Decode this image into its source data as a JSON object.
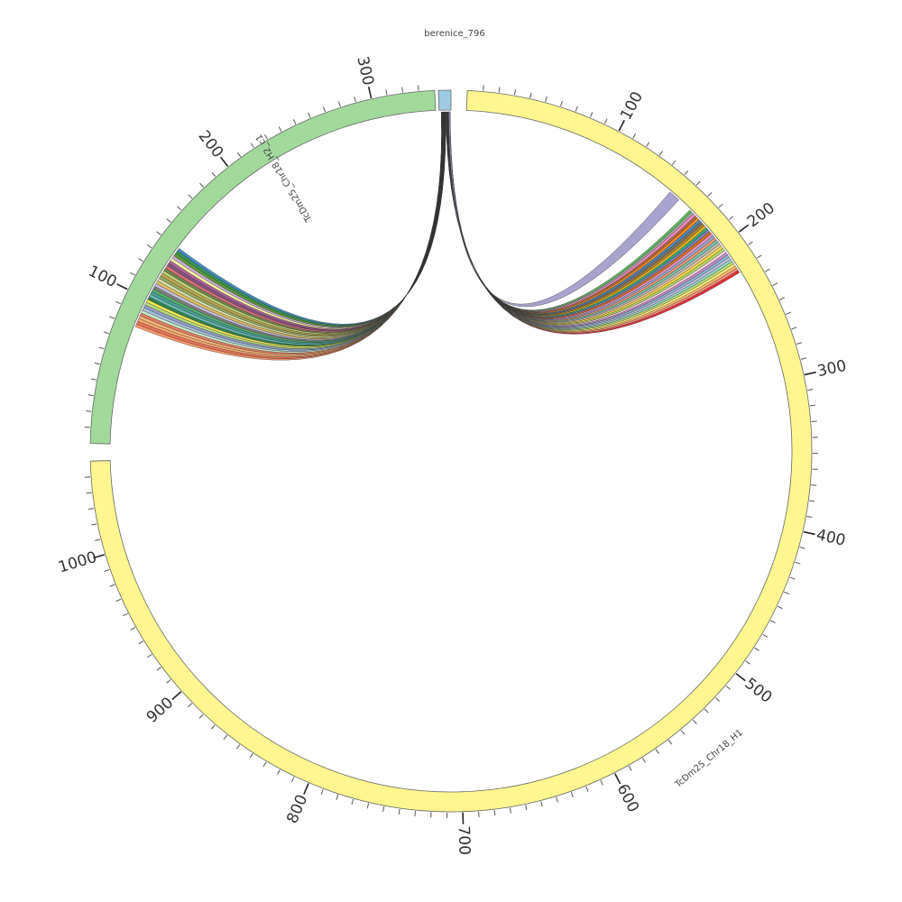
{
  "title": "berenice_796",
  "segments": [
    {
      "id": "h2c1",
      "label": "TcDm25_Chr18_H2_c1",
      "length": 340,
      "color": "#a1d99b",
      "major": [
        100,
        200,
        300
      ]
    },
    {
      "id": "small",
      "label": "",
      "length": 8,
      "color": "#9ecae1",
      "major": []
    },
    {
      "id": "h1",
      "label": "TcDm25_Chr18_H1",
      "length": 1060,
      "color": "#fff68f",
      "major": [
        100,
        200,
        300,
        400,
        500,
        600,
        700,
        800,
        900,
        1000
      ]
    }
  ],
  "links": {
    "right_group": {
      "target": "h1",
      "target_range": [
        168,
        222
      ],
      "colors": [
        "#e41a1c",
        "#fb8072",
        "#fdb462",
        "#ffed6f",
        "#b3de69",
        "#8dd3c7",
        "#bebada",
        "#80b1d3",
        "#bc80bd",
        "#fccde5",
        "#a6d854",
        "#ffd92f",
        "#e5c494",
        "#b3b3b3",
        "#66c2a5",
        "#fc8d62",
        "#8da0cb",
        "#e78ac3",
        "#d95f02",
        "#7570b3",
        "#1b9e77",
        "#e6ab02",
        "#a6761d",
        "#666666",
        "#377eb8",
        "#ff7f00",
        "#a65628",
        "#f781bf",
        "#999999",
        "#4daf4a"
      ]
    },
    "right_single": {
      "target": "h1",
      "target_range": [
        150,
        158
      ],
      "color": "#9e9ac8"
    },
    "left_group": {
      "target": "h2c1",
      "target_range": [
        80,
        140
      ],
      "colors": [
        "#fc8d59",
        "#ef6548",
        "#f4a261",
        "#fdae6b",
        "#e76f51",
        "#c7e9c0",
        "#9ebcda",
        "#8c96c6",
        "#b3de69",
        "#f0e442",
        "#1b7837",
        "#5ab4ac",
        "#35978f",
        "#41ab5d",
        "#737373",
        "#bcbddc",
        "#e7ba52",
        "#cedb9c",
        "#8ca252",
        "#bd9e39",
        "#b5cf6b",
        "#637939",
        "#d6616b",
        "#7b4173",
        "#a55194",
        "#ffff99",
        "#c2a5cf",
        "#4d9221",
        "#238b45",
        "#2c7fb8"
      ]
    }
  }
}
